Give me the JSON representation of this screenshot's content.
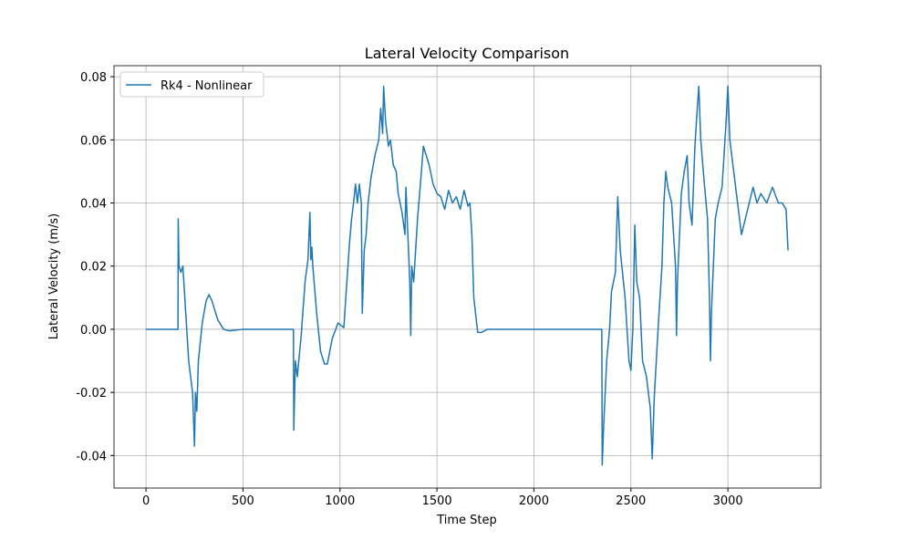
{
  "chart_data": {
    "type": "line",
    "title": "Lateral Velocity Comparison",
    "xlabel": "Time Step",
    "ylabel": "Lateral Velocity (m/s)",
    "xlim": [
      -165,
      3479
    ],
    "ylim": [
      -0.0503,
      0.0835
    ],
    "xticks": [
      0,
      500,
      1000,
      1500,
      2000,
      2500,
      3000
    ],
    "yticks": [
      {
        "value": -0.04,
        "label": "-0.04"
      },
      {
        "value": -0.02,
        "label": "-0.02"
      },
      {
        "value": 0,
        "label": "0.00"
      },
      {
        "value": 0.02,
        "label": "0.02"
      },
      {
        "value": 0.04,
        "label": "0.04"
      },
      {
        "value": 0.06,
        "label": "0.06"
      },
      {
        "value": 0.08,
        "label": "0.08"
      }
    ],
    "grid": true,
    "legend": "upper-left",
    "x": [
      0,
      165,
      166,
      170,
      180,
      190,
      200,
      210,
      220,
      230,
      240,
      250,
      255,
      262,
      270,
      290,
      310,
      325,
      340,
      370,
      400,
      430,
      500,
      760,
      762,
      770,
      780,
      800,
      820,
      835,
      845,
      850,
      855,
      860,
      880,
      900,
      920,
      935,
      960,
      990,
      1020,
      1030,
      1050,
      1060,
      1070,
      1080,
      1090,
      1100,
      1110,
      1115,
      1125,
      1135,
      1145,
      1160,
      1180,
      1200,
      1210,
      1220,
      1225,
      1235,
      1250,
      1260,
      1275,
      1290,
      1300,
      1320,
      1335,
      1340,
      1350,
      1360,
      1365,
      1370,
      1380,
      1400,
      1420,
      1430,
      1445,
      1460,
      1480,
      1500,
      1520,
      1540,
      1560,
      1580,
      1600,
      1620,
      1640,
      1660,
      1670,
      1680,
      1690,
      1710,
      1730,
      1760,
      2350,
      2352,
      2360,
      2375,
      2390,
      2400,
      2420,
      2432,
      2445,
      2470,
      2490,
      2500,
      2510,
      2520,
      2530,
      2545,
      2560,
      2580,
      2600,
      2610,
      2620,
      2640,
      2660,
      2670,
      2680,
      2690,
      2710,
      2720,
      2730,
      2735,
      2740,
      2760,
      2775,
      2790,
      2800,
      2815,
      2830,
      2840,
      2850,
      2860,
      2880,
      2895,
      2905,
      2910,
      2915,
      2935,
      2950,
      2970,
      2990,
      3000,
      3010,
      3030,
      3050,
      3070,
      3090,
      3110,
      3130,
      3150,
      3170,
      3200,
      3230,
      3260,
      3280,
      3300,
      3310
    ],
    "series": [
      {
        "name": "Rk4 - Nonlinear",
        "color": "#1f77b4",
        "values": [
          0,
          0,
          0.035,
          0.02,
          0.018,
          0.02,
          0.01,
          0,
          -0.01,
          -0.015,
          -0.02,
          -0.037,
          -0.02,
          -0.026,
          -0.01,
          0.002,
          0.009,
          0.011,
          0.009,
          0.003,
          0,
          -0.0005,
          0,
          0,
          -0.032,
          -0.01,
          -0.015,
          -0.002,
          0.015,
          0.022,
          0.037,
          0.022,
          0.026,
          0.02,
          0.005,
          -0.007,
          -0.011,
          -0.011,
          -0.003,
          0.002,
          0.0005,
          0.01,
          0.028,
          0.035,
          0.04,
          0.046,
          0.04,
          0.046,
          0.04,
          0.005,
          0.025,
          0.03,
          0.04,
          0.048,
          0.055,
          0.06,
          0.07,
          0.062,
          0.077,
          0.066,
          0.058,
          0.06,
          0.052,
          0.05,
          0.043,
          0.037,
          0.03,
          0.045,
          0.03,
          0.015,
          -0.002,
          0.02,
          0.015,
          0.035,
          0.05,
          0.058,
          0.055,
          0.052,
          0.046,
          0.043,
          0.042,
          0.038,
          0.044,
          0.04,
          0.042,
          0.038,
          0.044,
          0.039,
          0.04,
          0.03,
          0.01,
          -0.001,
          -0.001,
          0,
          0,
          -0.043,
          -0.03,
          -0.01,
          0,
          0.012,
          0.018,
          0.042,
          0.025,
          0.01,
          -0.01,
          -0.013,
          0,
          0.033,
          0.015,
          0.01,
          -0.01,
          -0.015,
          -0.025,
          -0.041,
          -0.022,
          0,
          0.02,
          0.04,
          0.05,
          0.045,
          0.04,
          0.03,
          0.02,
          -0.002,
          0.015,
          0.043,
          0.05,
          0.055,
          0.04,
          0.033,
          0.058,
          0.068,
          0.077,
          0.06,
          0.045,
          0.035,
          0.01,
          -0.01,
          0.005,
          0.035,
          0.04,
          0.045,
          0.065,
          0.077,
          0.06,
          0.05,
          0.04,
          0.03,
          0.035,
          0.04,
          0.045,
          0.04,
          0.043,
          0.04,
          0.045,
          0.04,
          0.04,
          0.038,
          0.025
        ]
      }
    ]
  }
}
